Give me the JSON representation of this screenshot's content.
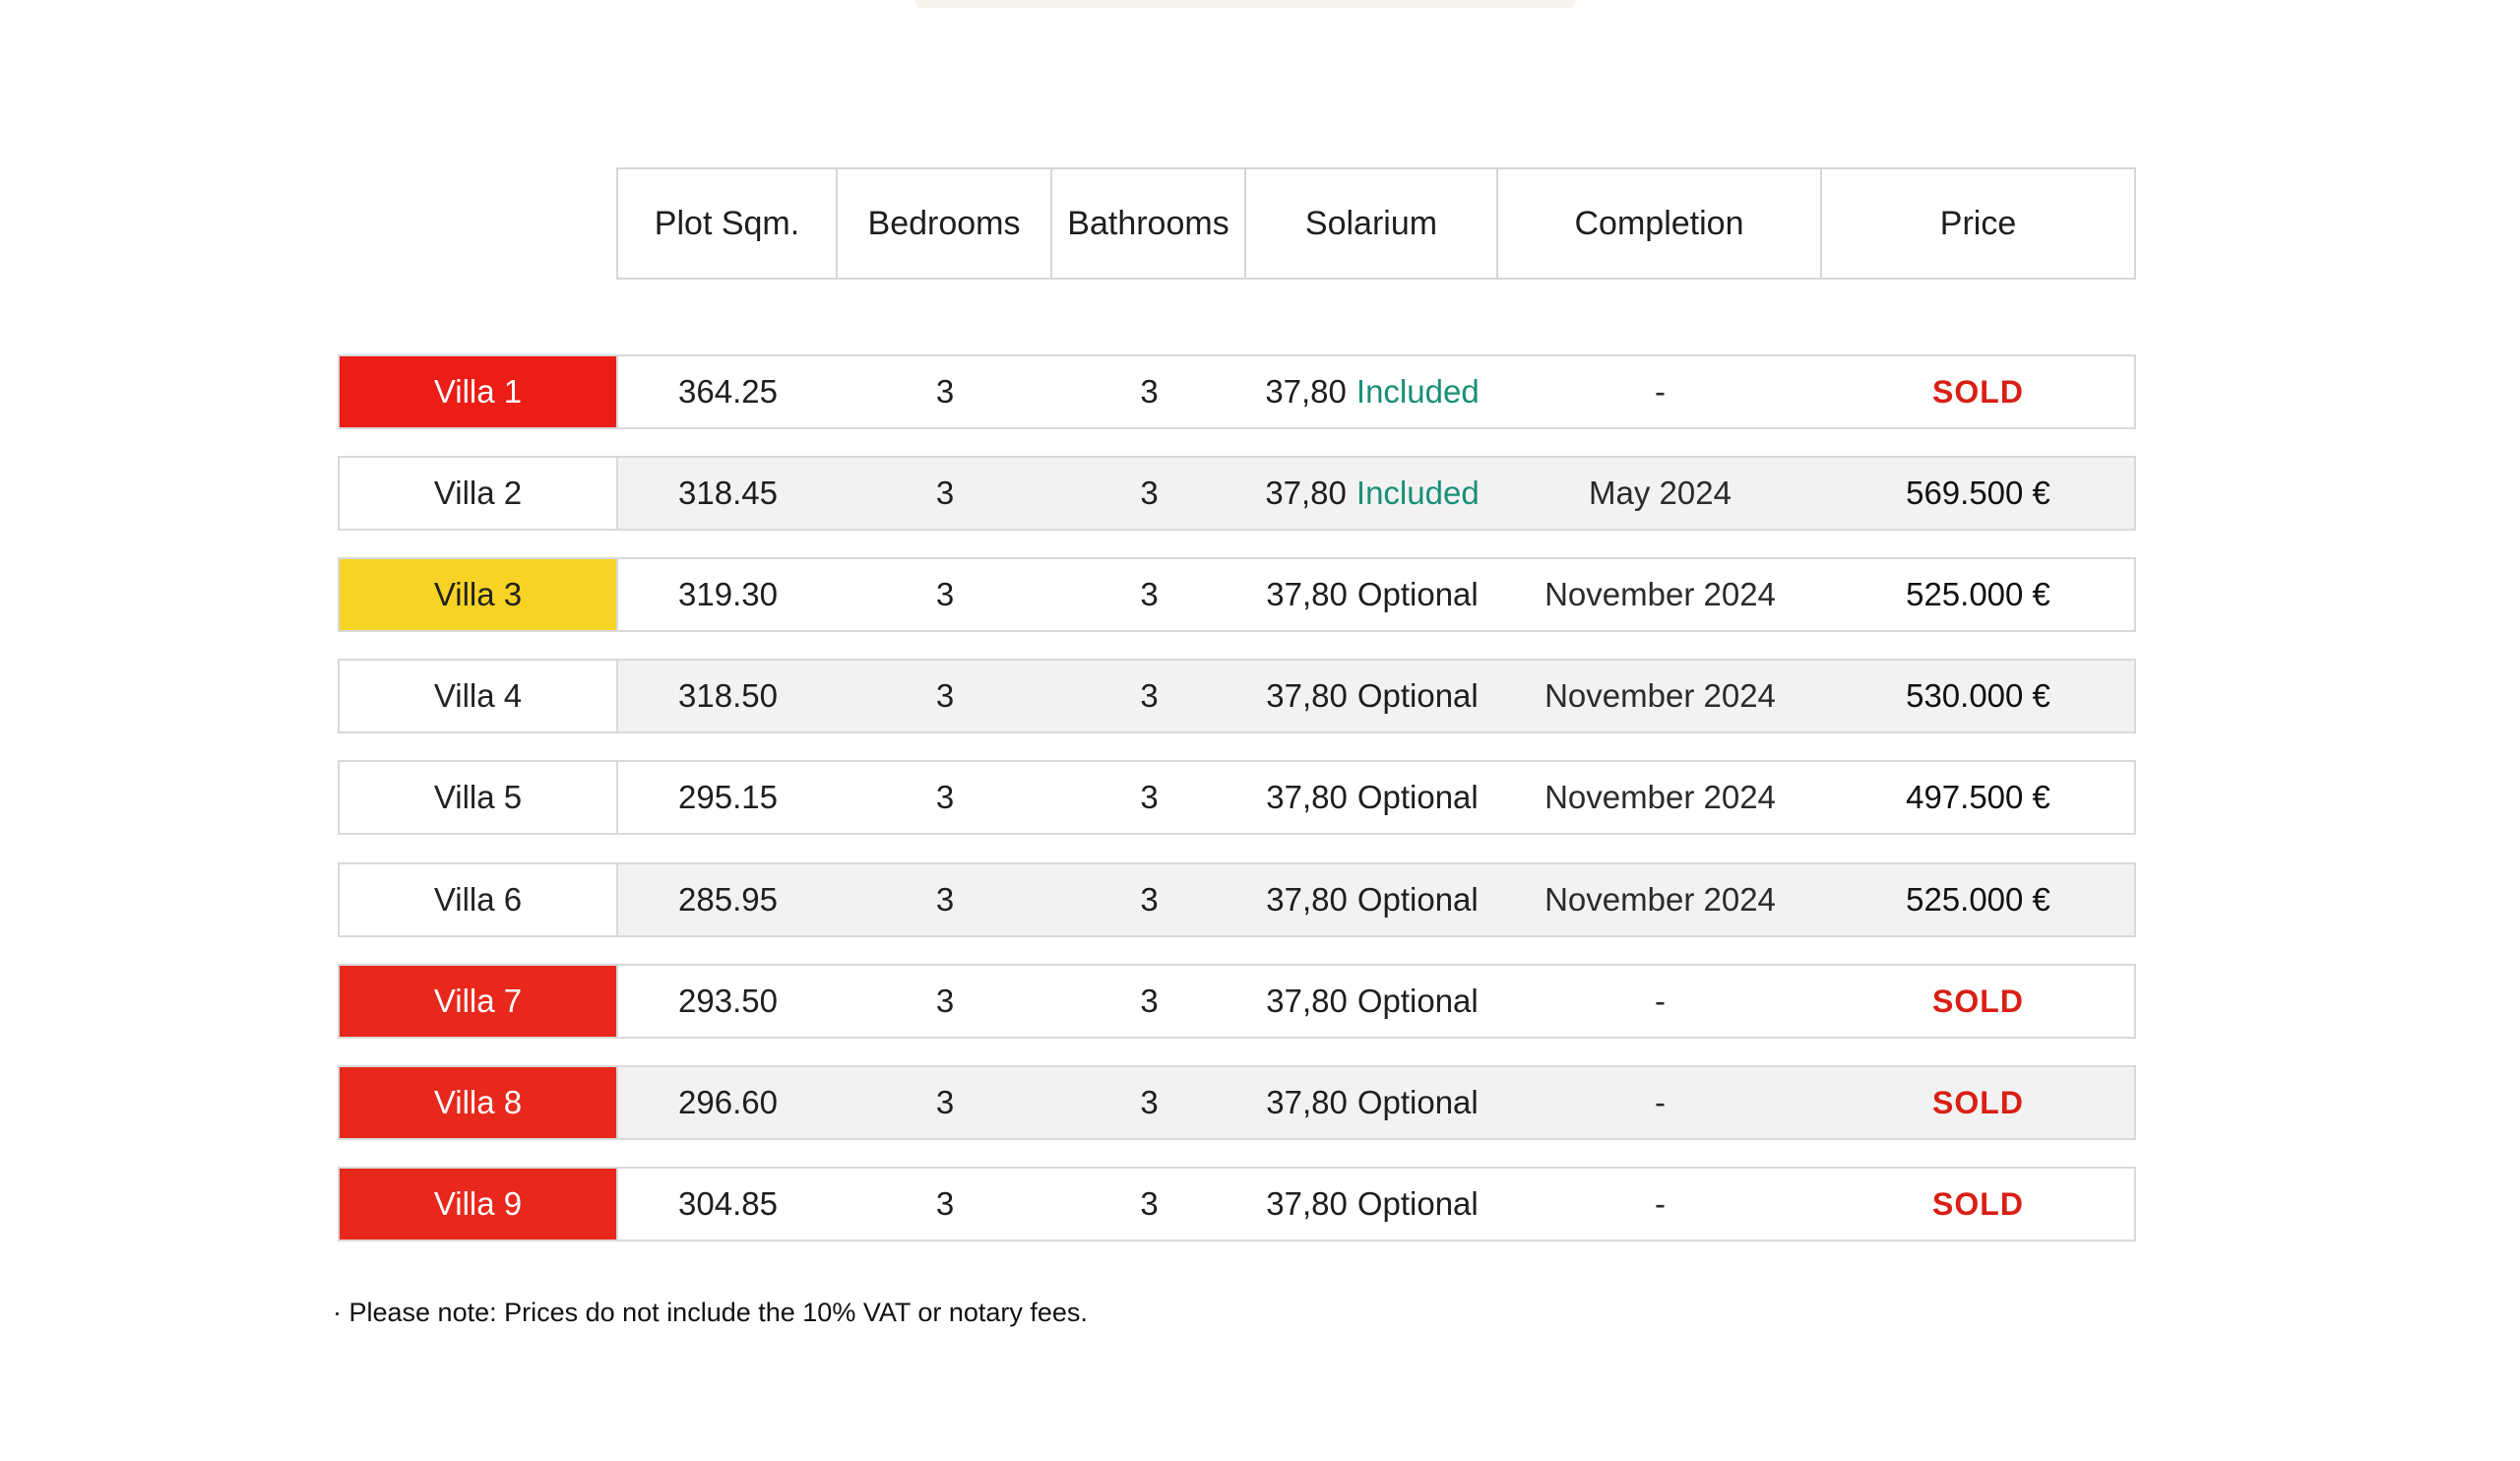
{
  "headers": [
    "Plot Sqm.",
    "Bedrooms",
    "Bathrooms",
    "Solarium",
    "Completion",
    "Price"
  ],
  "rows": [
    {
      "villa": "Villa 1",
      "plot": "364.25",
      "bedrooms": "3",
      "bathrooms": "3",
      "solarium_size": "37,80",
      "solarium_status": "Included",
      "completion": "-",
      "price": "SOLD"
    },
    {
      "villa": "Villa 2",
      "plot": "318.45",
      "bedrooms": "3",
      "bathrooms": "3",
      "solarium_size": "37,80",
      "solarium_status": "Included",
      "completion": "May 2024",
      "price": "569.500 €"
    },
    {
      "villa": "Villa 3",
      "plot": "319.30",
      "bedrooms": "3",
      "bathrooms": "3",
      "solarium_size": "37,80",
      "solarium_status": "Optional",
      "completion": "November 2024",
      "price": "525.000 €"
    },
    {
      "villa": "Villa 4",
      "plot": "318.50",
      "bedrooms": "3",
      "bathrooms": "3",
      "solarium_size": "37,80",
      "solarium_status": "Optional",
      "completion": "November 2024",
      "price": "530.000 €"
    },
    {
      "villa": "Villa 5",
      "plot": "295.15",
      "bedrooms": "3",
      "bathrooms": "3",
      "solarium_size": "37,80",
      "solarium_status": "Optional",
      "completion": "November 2024",
      "price": "497.500 €"
    },
    {
      "villa": "Villa 6",
      "plot": "285.95",
      "bedrooms": "3",
      "bathrooms": "3",
      "solarium_size": "37,80",
      "solarium_status": "Optional",
      "completion": "November 2024",
      "price": "525.000 €"
    },
    {
      "villa": "Villa 7",
      "plot": "293.50",
      "bedrooms": "3",
      "bathrooms": "3",
      "solarium_size": "37,80",
      "solarium_status": "Optional",
      "completion": "-",
      "price": "SOLD"
    },
    {
      "villa": "Villa 8",
      "plot": "296.60",
      "bedrooms": "3",
      "bathrooms": "3",
      "solarium_size": "37,80",
      "solarium_status": "Optional",
      "completion": "-",
      "price": "SOLD"
    },
    {
      "villa": "Villa 9",
      "plot": "304.85",
      "bedrooms": "3",
      "bathrooms": "3",
      "solarium_size": "37,80",
      "solarium_status": "Optional",
      "completion": "-",
      "price": "SOLD"
    }
  ],
  "colors": {
    "sold_red": "#ec1c16",
    "reserved_yellow": "#f6d324",
    "included_green": "#1a8f78",
    "sold_text": "#d91f14"
  },
  "note": "· Please note: Prices do not include the 10% VAT or notary fees."
}
